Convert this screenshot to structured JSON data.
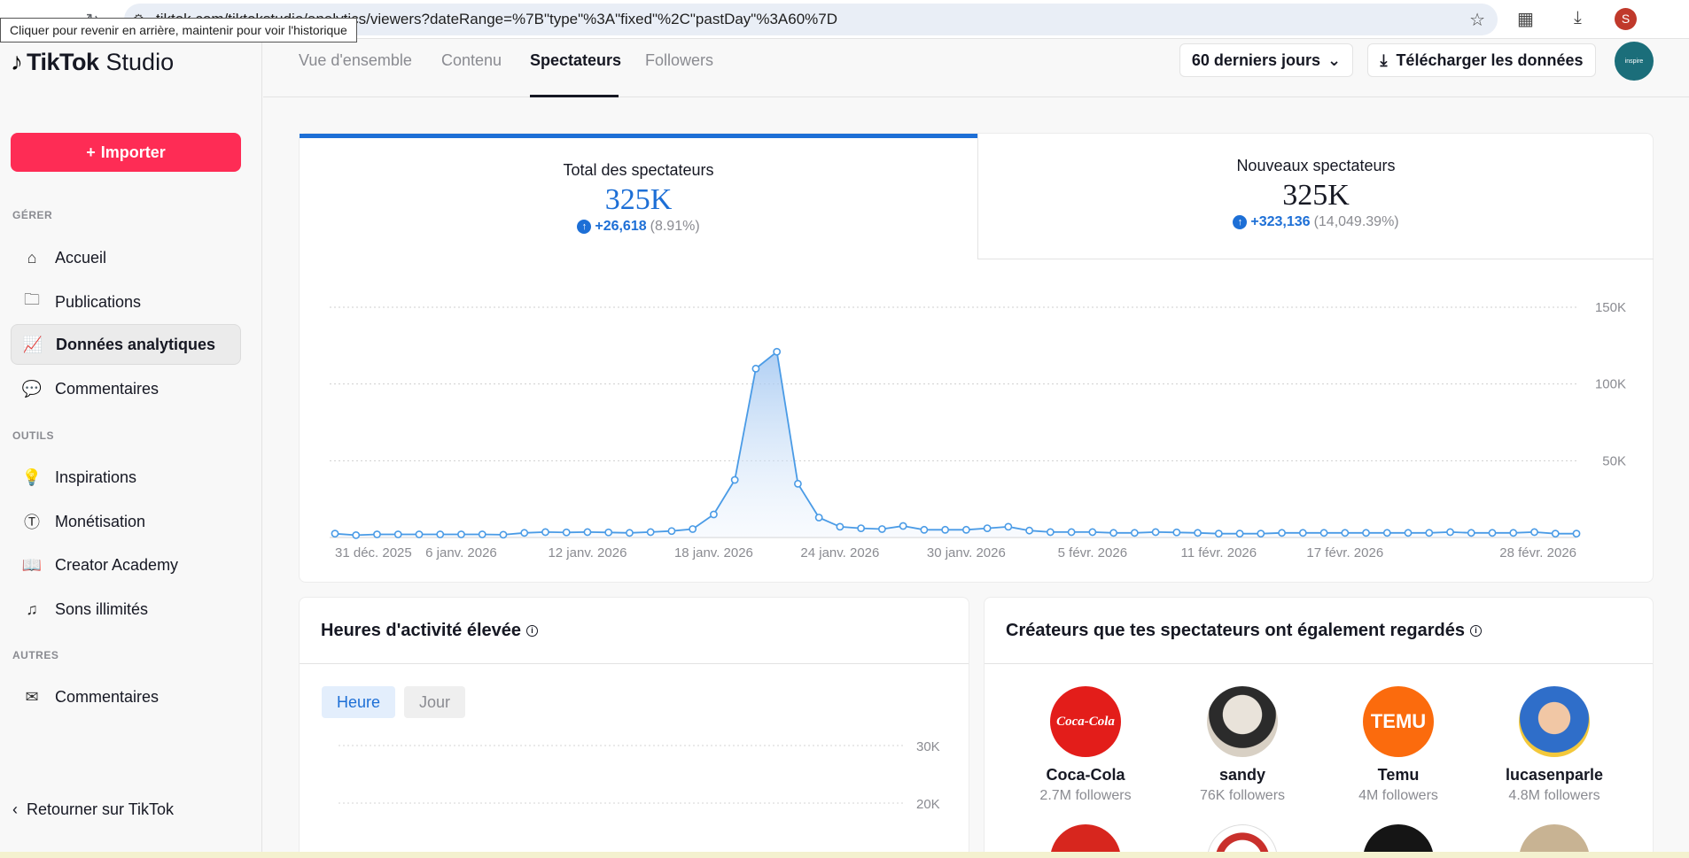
{
  "browser": {
    "url": "tiktok.com/tiktokstudio/analytics/viewers?dateRange=%7B\"type\"%3A\"fixed\"%2C\"pastDay\"%3A60%7D",
    "tooltip": "Cliquer pour revenir en arrière, maintenir pour voir l'historique",
    "profile_initial": "S"
  },
  "sidebar": {
    "logo_main": "TikTok",
    "logo_sub": "Studio",
    "import_label": "Importer",
    "sections": {
      "manage": "GÉRER",
      "tools": "OUTILS",
      "others": "AUTRES"
    },
    "items": {
      "home": "Accueil",
      "posts": "Publications",
      "analytics": "Données analytiques",
      "comments": "Commentaires",
      "inspirations": "Inspirations",
      "monetization": "Monétisation",
      "academy": "Creator Academy",
      "sounds": "Sons illimités",
      "feedback": "Commentaires"
    },
    "back_label": "Retourner sur TikTok"
  },
  "topbar": {
    "tabs": [
      "Vue d'ensemble",
      "Contenu",
      "Spectateurs",
      "Followers"
    ],
    "range_label": "60 derniers jours",
    "download_label": "Télécharger les données",
    "avatar_text": "inspire"
  },
  "metrics": {
    "total": {
      "title": "Total des spectateurs",
      "value": "325K",
      "delta": "+26,618",
      "pct": "(8.91%)"
    },
    "new": {
      "title": "Nouveaux spectateurs",
      "value": "325K",
      "delta": "+323,136",
      "pct": "(14,049.39%)"
    }
  },
  "chart_data": {
    "type": "line",
    "title": "",
    "xlabel": "",
    "ylabel": "",
    "ylim": [
      0,
      150000
    ],
    "y_ticks": [
      "150K",
      "100K",
      "50K"
    ],
    "x_tick_labels": [
      "31 déc. 2025",
      "6 janv. 2026",
      "12 janv. 2026",
      "18 janv. 2026",
      "24 janv. 2026",
      "30 janv. 2026",
      "5 févr. 2026",
      "11 févr. 2026",
      "17 févr. 2026",
      "28 févr. 2026"
    ],
    "x_tick_index": [
      0,
      6,
      12,
      18,
      24,
      30,
      36,
      42,
      48,
      59
    ],
    "grid": true,
    "values": [
      2500,
      1500,
      2000,
      2000,
      2000,
      2000,
      2000,
      2000,
      1800,
      3000,
      3500,
      3300,
      3500,
      3300,
      3000,
      3500,
      4200,
      5500,
      15000,
      37500,
      110000,
      121000,
      35000,
      13000,
      7000,
      6000,
      5500,
      7500,
      5000,
      5000,
      5000,
      6000,
      7000,
      4500,
      3500,
      3500,
      3500,
      3000,
      3000,
      3500,
      3300,
      3000,
      2500,
      2500,
      2500,
      3000,
      3000,
      3000,
      3000,
      3000,
      3000,
      3000,
      3000,
      3500,
      3000,
      3000,
      3000,
      3500,
      2500,
      2500
    ]
  },
  "activity": {
    "title": "Heures d'activité élevée",
    "pills": [
      "Heure",
      "Jour"
    ],
    "y_ticks": [
      "30K",
      "20K"
    ]
  },
  "creators": {
    "title": "Créateurs que tes spectateurs ont également regardés",
    "list": [
      {
        "name": "Coca-Cola",
        "followers": "2.7M followers",
        "color": "#e31d1a",
        "mark": "Coca-Cola"
      },
      {
        "name": "sandy",
        "followers": "76K followers",
        "color": "#c9c2b8",
        "mark": ""
      },
      {
        "name": "Temu",
        "followers": "4M followers",
        "color": "#fb6b0d",
        "mark": "TEMU"
      },
      {
        "name": "lucasenparle",
        "followers": "4.8M followers",
        "color": "#2f6ec9",
        "mark": ""
      }
    ]
  }
}
